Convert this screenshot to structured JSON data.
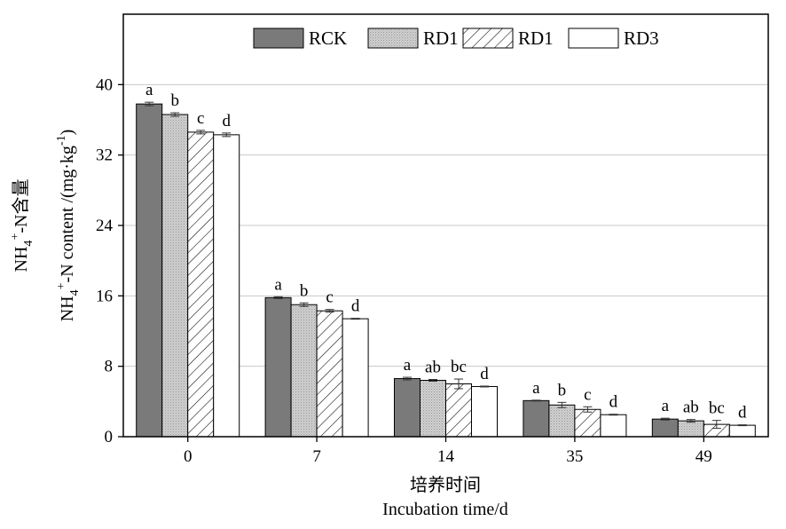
{
  "chart_data": {
    "type": "bar",
    "categories": [
      "0",
      "7",
      "14",
      "35",
      "49"
    ],
    "series": [
      {
        "name": "RCK",
        "fill": "#7a7a7a",
        "pattern": "solid",
        "values": [
          37.8,
          15.8,
          6.6,
          4.1,
          2.0
        ],
        "errors": [
          0.2,
          0.1,
          0.15,
          0.05,
          0.1
        ],
        "labels": [
          "a",
          "a",
          "a",
          "a",
          "a"
        ]
      },
      {
        "name": "RD1",
        "fill": "#cfcfcf",
        "pattern": "dots",
        "values": [
          36.6,
          15.0,
          6.4,
          3.6,
          1.8
        ],
        "errors": [
          0.2,
          0.2,
          0.1,
          0.3,
          0.15
        ],
        "labels": [
          "b",
          "b",
          "ab",
          "b",
          "ab"
        ]
      },
      {
        "name": "RD1",
        "fill": "#ffffff",
        "pattern": "hatch",
        "values": [
          34.6,
          14.3,
          6.0,
          3.1,
          1.4
        ],
        "errors": [
          0.2,
          0.15,
          0.55,
          0.3,
          0.45
        ],
        "labels": [
          "c",
          "c",
          "bc",
          "c",
          "bc"
        ]
      },
      {
        "name": "RD3",
        "fill": "#ffffff",
        "pattern": "solid",
        "values": [
          34.3,
          13.4,
          5.7,
          2.5,
          1.3
        ],
        "errors": [
          0.2,
          0.05,
          0.05,
          0.05,
          0.05
        ],
        "labels": [
          "d",
          "d",
          "d",
          "d",
          "d"
        ]
      }
    ],
    "ylim": [
      0,
      48
    ],
    "yticks": [
      0,
      8,
      16,
      24,
      32,
      40
    ],
    "grid": true,
    "legend_position": "top-center",
    "ylabel": {
      "line1_prefix": "NH",
      "line1_sub": "4",
      "line1_sup": "+",
      "line1_suffix": "-N含量",
      "line2_prefix": "NH",
      "line2_sub": "4",
      "line2_sup": "+",
      "line2_mid": "-N content /(mg·kg",
      "line2_sup2": "-1",
      "line2_end": ")"
    },
    "xlabel": {
      "line1": "培养时间",
      "line2": "Incubation time/d"
    }
  }
}
